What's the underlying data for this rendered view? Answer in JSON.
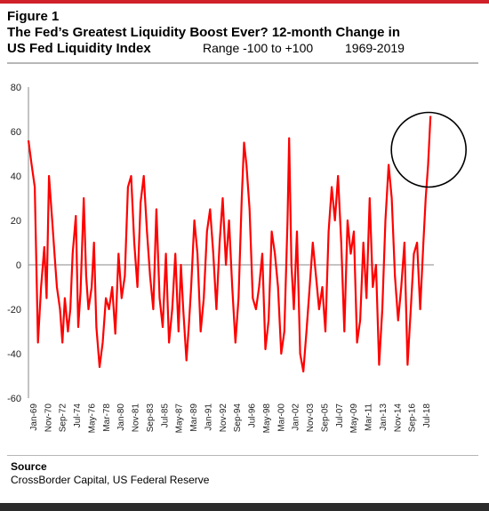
{
  "header": {
    "figure_label": "Figure 1",
    "title_line1": "The Fed’s Greatest Liquidity Boost Ever? 12-month Change in",
    "title_line2": "US Fed Liquidity Index",
    "range_text": "Range -100 to +100",
    "years_text": "1969-2019"
  },
  "source": {
    "heading": "Source",
    "text": "CrossBorder Capital, US Federal Reserve"
  },
  "colors": {
    "series": "#ff0000",
    "highlight_circle": "#000000",
    "accent_bar": "#d0202a"
  },
  "chart_data": {
    "type": "line",
    "title": "The Fed’s Greatest Liquidity Boost Ever? 12-month Change in US Fed Liquidity Index",
    "xlabel": "",
    "ylabel": "",
    "ylim": [
      -60,
      80
    ],
    "yticks": [
      80,
      60,
      40,
      20,
      0,
      -20,
      -40,
      -60
    ],
    "xlim": [
      1969.0,
      2020.33
    ],
    "grid": false,
    "legend": "none",
    "annotation": "circle around the 2019 peak",
    "x_tick_labels": [
      "Jan-69",
      "Nov-70",
      "Sep-72",
      "Jul-74",
      "May-76",
      "Mar-78",
      "Jan-80",
      "Nov-81",
      "Sep-83",
      "Jul-85",
      "May-87",
      "Mar-89",
      "Jan-91",
      "Nov-92",
      "Sep-94",
      "Jul-96",
      "May-98",
      "Mar-00",
      "Jan-02",
      "Nov-03",
      "Sep-05",
      "Jul-07",
      "May-09",
      "Mar-11",
      "Jan-13",
      "Nov-14",
      "Sep-16",
      "Jul-18"
    ],
    "series": [
      {
        "x": [
          1969.0,
          1969.4,
          1969.8,
          1970.2,
          1970.6,
          1971.0,
          1971.3,
          1971.6,
          1972.0,
          1972.3,
          1972.6,
          1973.0,
          1973.3,
          1973.6,
          1974.0,
          1974.3,
          1974.6,
          1975.0,
          1975.3,
          1975.6,
          1976.0,
          1976.3,
          1976.6,
          1977.0,
          1977.3,
          1977.6,
          1978.0,
          1978.4,
          1978.8,
          1979.2,
          1979.6,
          1980.0,
          1980.4,
          1980.8,
          1981.2,
          1981.6,
          1982.0,
          1982.4,
          1982.8,
          1983.2,
          1983.6,
          1984.0,
          1984.4,
          1984.8,
          1985.2,
          1985.6,
          1986.0,
          1986.4,
          1986.8,
          1987.2,
          1987.6,
          1988.0,
          1988.3,
          1988.6,
          1989.0,
          1989.3,
          1989.6,
          1990.0,
          1990.4,
          1990.8,
          1991.2,
          1991.6,
          1992.0,
          1992.4,
          1992.8,
          1993.2,
          1993.6,
          1994.0,
          1994.4,
          1994.8,
          1995.2,
          1995.6,
          1996.0,
          1996.3,
          1996.6,
          1997.0,
          1997.4,
          1997.8,
          1998.2,
          1998.6,
          1999.0,
          1999.4,
          1999.8,
          2000.2,
          2000.6,
          2001.0,
          2001.4,
          2001.8,
          2002.0,
          2002.3,
          2002.6,
          2003.0,
          2003.4,
          2003.8,
          2004.2,
          2004.6,
          2005.0,
          2005.4,
          2005.8,
          2006.2,
          2006.6,
          2007.0,
          2007.4,
          2007.8,
          2008.2,
          2008.6,
          2009.0,
          2009.4,
          2009.8,
          2010.2,
          2010.6,
          2011.0,
          2011.4,
          2011.8,
          2012.2,
          2012.6,
          2013.0,
          2013.4,
          2013.8,
          2014.2,
          2014.6,
          2015.0,
          2015.4,
          2015.8,
          2016.2,
          2016.6,
          2017.0,
          2017.4,
          2017.8,
          2018.2,
          2018.6,
          2019.0,
          2019.3,
          2019.6,
          2019.9
        ],
        "y": [
          56,
          45,
          35,
          -35,
          -10,
          8,
          -15,
          40,
          20,
          5,
          -10,
          -20,
          -35,
          -15,
          -30,
          -20,
          5,
          22,
          -28,
          -12,
          30,
          -5,
          -20,
          -10,
          10,
          -28,
          -46,
          -35,
          -15,
          -20,
          -10,
          -31,
          5,
          -15,
          -5,
          35,
          40,
          10,
          -10,
          28,
          40,
          15,
          -5,
          -20,
          25,
          -15,
          -28,
          5,
          -35,
          -20,
          5,
          -30,
          0,
          -20,
          -43,
          -28,
          -10,
          20,
          5,
          -30,
          -15,
          15,
          25,
          5,
          -20,
          10,
          30,
          0,
          20,
          -10,
          -35,
          -15,
          30,
          55,
          45,
          25,
          -15,
          -20,
          -10,
          5,
          -38,
          -25,
          15,
          5,
          -10,
          -40,
          -30,
          20,
          57,
          0,
          -20,
          15,
          -40,
          -48,
          -30,
          -10,
          10,
          -5,
          -20,
          -10,
          -30,
          15,
          35,
          20,
          40,
          10,
          -30,
          20,
          5,
          15,
          -35,
          -25,
          10,
          -15,
          30,
          -10,
          0,
          -45,
          -20,
          20,
          45,
          30,
          -5,
          -25,
          -10,
          10,
          -45,
          -20,
          5,
          10,
          -20,
          10,
          30,
          45,
          67
        ],
        "y_range_per_point_note": "12-month change values"
      }
    ]
  }
}
